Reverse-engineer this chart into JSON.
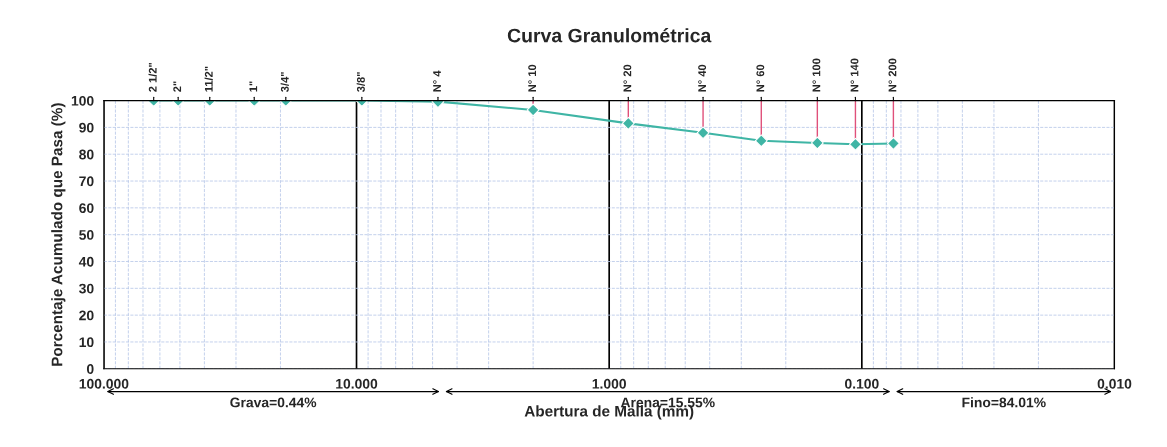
{
  "chart_data": {
    "type": "line",
    "title": "Curva Granulométrica",
    "xlabel": "Abertura de Malla (mm)",
    "ylabel": "Porcentaje Acumulado que Pasa (%)",
    "x": [
      63.5,
      50.8,
      38.1,
      25.4,
      19.05,
      9.525,
      4.76,
      2.0,
      0.84,
      0.425,
      0.25,
      0.15,
      0.106,
      0.075
    ],
    "series": [
      {
        "color": "#3fb5a5",
        "values": [
          100,
          100,
          100,
          100,
          100,
          100,
          99.6,
          96.5,
          91.5,
          88,
          85,
          84.2,
          83.7,
          84.0
        ]
      }
    ],
    "log": "x",
    "xlim": [
      100,
      0.01
    ],
    "xticks": [
      {
        "value": 100,
        "label": "100.000"
      },
      {
        "value": 10,
        "label": "10.000"
      },
      {
        "value": 1,
        "label": "1.000"
      },
      {
        "value": 0.1,
        "label": "0.100"
      },
      {
        "value": 0.01,
        "label": "0.010"
      }
    ],
    "annotations": [
      {
        "text": "2 1/2\"",
        "x": 63.5,
        "y": 100
      },
      {
        "text": "2\"",
        "x": 50.8,
        "y": 100
      },
      {
        "text": "11/2\"",
        "x": 38.1,
        "y": 100
      },
      {
        "text": "1\"",
        "x": 25.4,
        "y": 100
      },
      {
        "text": "3/4\"",
        "x": 19.05,
        "y": 100
      },
      {
        "text": "3/8\"",
        "x": 9.525,
        "y": 100
      },
      {
        "text": "N° 4",
        "x": 4.76,
        "y": 99.6
      },
      {
        "text": "N° 10",
        "x": 2.0,
        "y": 96.5
      },
      {
        "text": "N° 20",
        "x": 0.84,
        "y": 91.5
      },
      {
        "text": "N° 40",
        "x": 0.425,
        "y": 88
      },
      {
        "text": "N° 60",
        "x": 0.25,
        "y": 85
      },
      {
        "text": "N° 100",
        "x": 0.15,
        "y": 84.2
      },
      {
        "text": "N° 140",
        "x": 0.106,
        "y": 83.7
      },
      {
        "text": "N° 200",
        "x": 0.075,
        "y": 84.0
      },
      "Grava=0.44%",
      "Arena=15.55%",
      "Fino=84.01%"
    ],
    "ylim": [
      0,
      100
    ],
    "yticks": [
      0,
      10,
      20,
      30,
      40,
      50,
      60,
      70,
      80,
      90,
      100
    ],
    "grid": true,
    "marker": "diamond",
    "line_style": "solid"
  }
}
